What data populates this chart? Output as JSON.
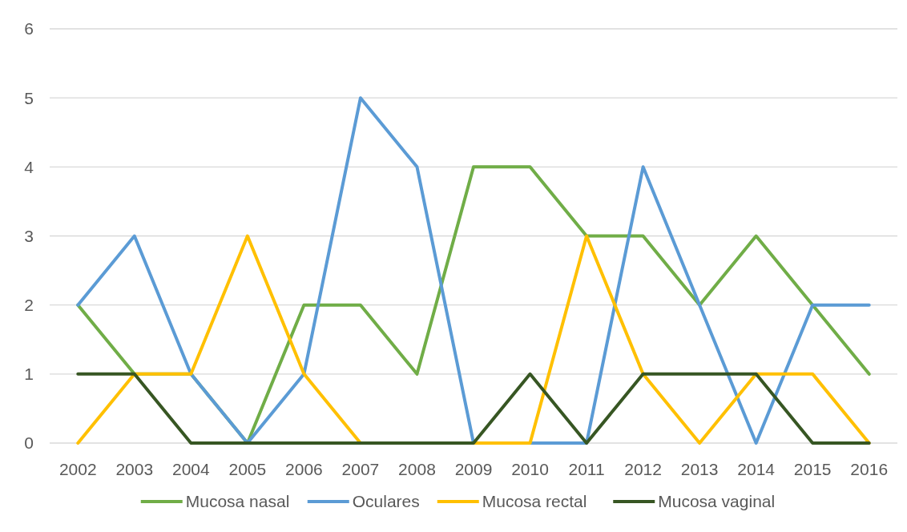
{
  "chart_data": {
    "type": "line",
    "categories": [
      "2002",
      "2003",
      "2004",
      "2005",
      "2006",
      "2007",
      "2008",
      "2009",
      "2010",
      "2011",
      "2012",
      "2013",
      "2014",
      "2015",
      "2016"
    ],
    "series": [
      {
        "name": "Mucosa nasal",
        "color": "#70ad47",
        "values": [
          2,
          1,
          1,
          0,
          2,
          2,
          1,
          4,
          4,
          3,
          3,
          2,
          3,
          2,
          1
        ]
      },
      {
        "name": "Oculares",
        "color": "#5b9bd5",
        "values": [
          2,
          3,
          1,
          0,
          1,
          5,
          4,
          0,
          0,
          0,
          4,
          2,
          0,
          2,
          2
        ]
      },
      {
        "name": "Mucosa rectal",
        "color": "#ffc000",
        "values": [
          0,
          1,
          1,
          3,
          1,
          0,
          0,
          0,
          0,
          3,
          1,
          0,
          1,
          1,
          0
        ]
      },
      {
        "name": "Mucosa vaginal",
        "color": "#375623",
        "values": [
          1,
          1,
          0,
          0,
          0,
          0,
          0,
          0,
          1,
          0,
          1,
          1,
          1,
          0,
          0
        ]
      }
    ],
    "ylim": [
      0,
      6
    ],
    "yticks": [
      0,
      1,
      2,
      3,
      4,
      5,
      6
    ],
    "grid": "y",
    "legend": "bottom",
    "marker": "none",
    "line_style": "solid"
  }
}
